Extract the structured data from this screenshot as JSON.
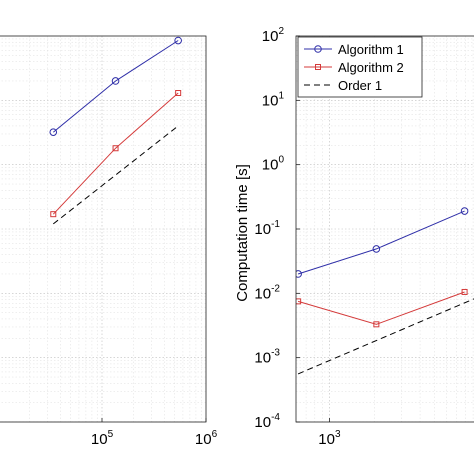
{
  "colors": {
    "algorithm_1": "#2f2fa8",
    "algorithm_2": "#d43a3a",
    "order_1": "#000000",
    "grid": "#bdbdbd"
  },
  "chart_data": [
    {
      "type": "line",
      "xscale": "log",
      "yscale": "log",
      "xlim": [
        10000,
        1000000
      ],
      "ylim": [
        0.0001,
        100
      ],
      "xticks": [
        {
          "base": "10",
          "exp": "5",
          "value": 100000
        },
        {
          "base": "10",
          "exp": "6",
          "value": 1000000
        }
      ],
      "grid": true,
      "series": [
        {
          "name": "Algorithm 1",
          "marker": "circle",
          "x": [
            34000,
            135000,
            540000
          ],
          "y": [
            3.2,
            20,
            85
          ]
        },
        {
          "name": "Algorithm 2",
          "marker": "square",
          "x": [
            34000,
            135000,
            540000
          ],
          "y": [
            0.17,
            1.8,
            13
          ]
        },
        {
          "name": "Order 1",
          "marker": "none",
          "dash": true,
          "x": [
            34000,
            540000
          ],
          "y": [
            0.12,
            4
          ]
        }
      ]
    },
    {
      "type": "line",
      "xscale": "log",
      "yscale": "log",
      "xlim": [
        600,
        10000
      ],
      "ylim": [
        0.0001,
        100
      ],
      "ylabel": "Computation time [s]",
      "yticks": [
        {
          "base": "10",
          "exp": "2",
          "value": 100
        },
        {
          "base": "10",
          "exp": "1",
          "value": 10
        },
        {
          "base": "10",
          "exp": "0",
          "value": 1
        },
        {
          "base": "10",
          "exp": "-1",
          "value": 0.1
        },
        {
          "base": "10",
          "exp": "-2",
          "value": 0.01
        },
        {
          "base": "10",
          "exp": "-3",
          "value": 0.001
        },
        {
          "base": "10",
          "exp": "-4",
          "value": 0.0001
        }
      ],
      "xticks": [
        {
          "base": "10",
          "exp": "3",
          "value": 1000
        }
      ],
      "grid": true,
      "legend": "top-left",
      "series": [
        {
          "name": "Algorithm 1",
          "marker": "circle",
          "x": [
            620,
            2050,
            7900
          ],
          "y": [
            0.02,
            0.049,
            0.19
          ]
        },
        {
          "name": "Algorithm 2",
          "marker": "square",
          "x": [
            620,
            2050,
            7900
          ],
          "y": [
            0.0075,
            0.0033,
            0.0105
          ]
        },
        {
          "name": "Order 1",
          "marker": "none",
          "dash": true,
          "x": [
            620,
            10000
          ],
          "y": [
            0.00056,
            0.009
          ]
        }
      ]
    }
  ]
}
